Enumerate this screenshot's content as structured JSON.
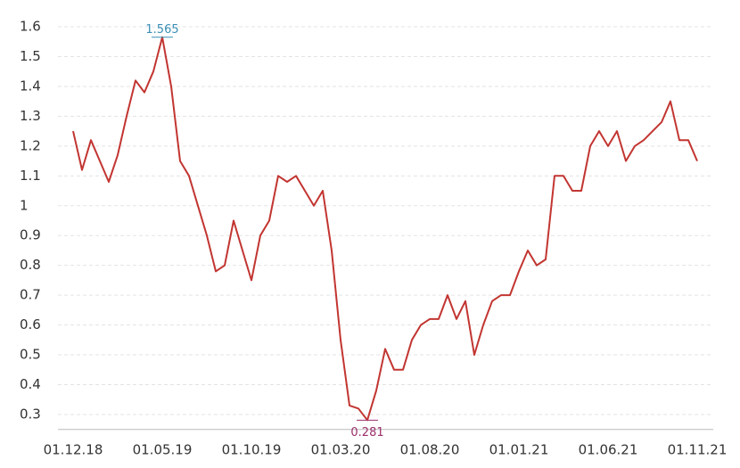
{
  "chart_data": {
    "type": "line",
    "categories": [
      "01.12.18",
      null,
      null,
      null,
      null,
      null,
      null,
      null,
      null,
      null,
      "01.05.19",
      null,
      null,
      null,
      null,
      null,
      null,
      null,
      null,
      null,
      "01.10.19",
      null,
      null,
      null,
      null,
      null,
      null,
      null,
      null,
      null,
      "01.03.20",
      null,
      null,
      null,
      null,
      null,
      null,
      null,
      null,
      null,
      "01.08.20",
      null,
      null,
      null,
      null,
      null,
      null,
      null,
      null,
      null,
      "01.01.21",
      null,
      null,
      null,
      null,
      null,
      null,
      null,
      null,
      null,
      "01.06.21",
      null,
      null,
      null,
      null,
      null,
      null,
      null,
      null,
      null,
      "01.11.21"
    ],
    "values": [
      1.25,
      1.12,
      1.22,
      1.15,
      1.08,
      1.17,
      1.3,
      1.42,
      1.38,
      1.45,
      1.565,
      1.4,
      1.15,
      1.1,
      1.0,
      0.9,
      0.78,
      0.8,
      0.95,
      0.85,
      0.75,
      0.9,
      0.95,
      1.1,
      1.08,
      1.1,
      1.05,
      1.0,
      1.05,
      0.85,
      0.55,
      0.33,
      0.32,
      0.281,
      0.38,
      0.52,
      0.45,
      0.45,
      0.55,
      0.6,
      0.62,
      0.62,
      0.7,
      0.62,
      0.68,
      0.5,
      0.6,
      0.68,
      0.7,
      0.7,
      0.78,
      0.85,
      0.8,
      0.82,
      1.1,
      1.1,
      1.05,
      1.05,
      1.2,
      1.25,
      1.2,
      1.25,
      1.15,
      1.2,
      1.22,
      1.25,
      1.28,
      1.35,
      1.22,
      1.22,
      1.15
    ],
    "color": "#c23531",
    "max_label_color": "#3a8fb7",
    "min_label_color": "#9b2f6b",
    "ylim": [
      0.25,
      1.65
    ],
    "yticks": [
      0.3,
      0.4,
      0.5,
      0.6,
      0.7,
      0.8,
      0.9,
      1,
      1.1,
      1.2,
      1.3,
      1.4,
      1.5,
      1.6
    ],
    "grid": true
  }
}
